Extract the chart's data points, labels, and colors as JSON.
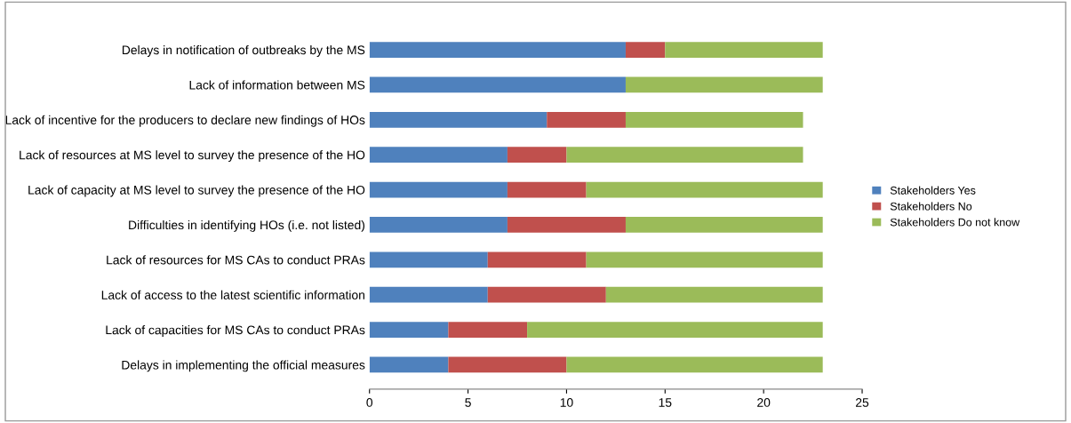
{
  "chart_data": {
    "type": "bar",
    "orientation": "horizontal",
    "stacked": true,
    "categories": [
      "Delays in notification of outbreaks by the MS",
      "Lack of information between MS",
      "Lack of incentive for the producers to declare new findings of HOs",
      "Lack of resources at MS level to survey the presence of the HO",
      "Lack of capacity at MS level to survey the presence of the HO",
      "Difficulties in identifying HOs (i.e. not listed)",
      "Lack of resources for MS CAs to conduct PRAs",
      "Lack of access to the latest scientific information",
      "Lack of capacities for MS CAs to conduct PRAs",
      "Delays in implementing the official measures"
    ],
    "series": [
      {
        "name": "Stakeholders Yes",
        "color": "#4f81bd",
        "values": [
          13,
          13,
          9,
          7,
          7,
          7,
          6,
          6,
          4,
          4
        ]
      },
      {
        "name": "Stakeholders No",
        "color": "#c0504d",
        "values": [
          2,
          0,
          4,
          3,
          4,
          6,
          5,
          6,
          4,
          6
        ]
      },
      {
        "name": "Stakeholders Do not know",
        "color": "#9bbb59",
        "values": [
          8,
          10,
          9,
          12,
          12,
          10,
          12,
          11,
          15,
          13
        ]
      }
    ],
    "xlim": [
      0,
      25
    ],
    "xticks": [
      0,
      5,
      10,
      15,
      20,
      25
    ],
    "grid": false,
    "legend": "right"
  }
}
